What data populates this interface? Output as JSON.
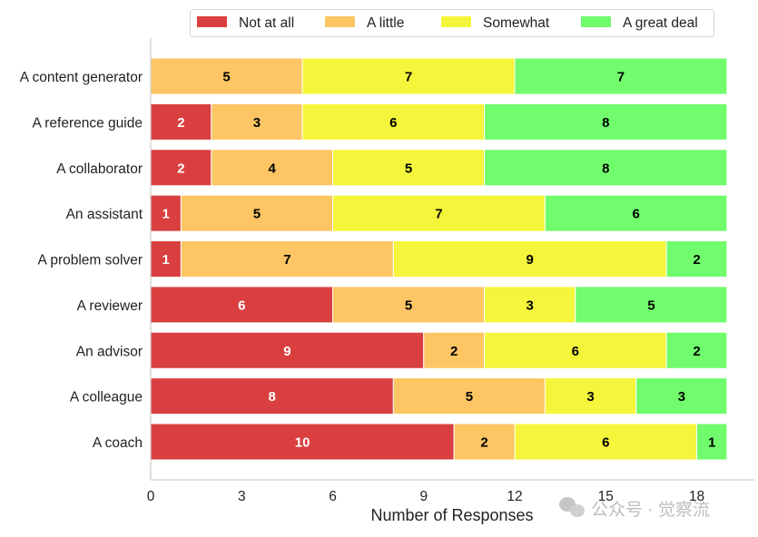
{
  "chart_data": {
    "type": "bar",
    "orientation": "horizontal",
    "stacked": true,
    "title": "",
    "xlabel": "Number of Responses",
    "ylabel": "",
    "xlim": [
      0,
      19.9
    ],
    "xticks": [
      0,
      3,
      6,
      9,
      12,
      15,
      18
    ],
    "grid": false,
    "legend_position": "top",
    "categories": [
      "A content generator",
      "A reference guide",
      "A collaborator",
      "An assistant",
      "A problem solver",
      "A reviewer",
      "An advisor",
      "A colleague",
      "A coach"
    ],
    "series": [
      {
        "name": "Not at all",
        "color": "#d93f3f",
        "label_color": "#ffffff",
        "values": [
          0,
          2,
          2,
          1,
          1,
          6,
          9,
          8,
          10
        ]
      },
      {
        "name": "A little",
        "color": "#fdc563",
        "label_color": "#000000",
        "values": [
          5,
          3,
          4,
          5,
          7,
          5,
          2,
          5,
          2
        ]
      },
      {
        "name": "Somewhat",
        "color": "#f5f53c",
        "label_color": "#000000",
        "values": [
          7,
          6,
          5,
          7,
          9,
          3,
          6,
          3,
          6
        ]
      },
      {
        "name": "A great deal",
        "color": "#70fc6c",
        "label_color": "#000000",
        "values": [
          7,
          8,
          8,
          6,
          2,
          5,
          2,
          3,
          1
        ]
      }
    ]
  },
  "watermark": "公众号 · 觉察流"
}
